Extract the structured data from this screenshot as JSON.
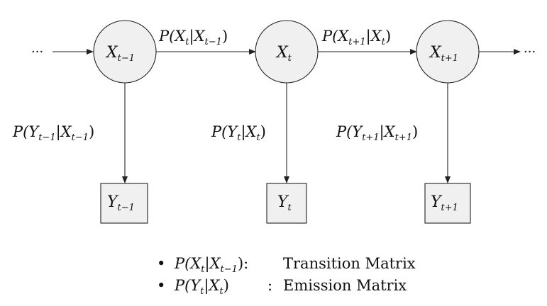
{
  "diagram": {
    "leading_ellipsis": "···",
    "trailing_ellipsis": "···",
    "hidden_nodes": [
      {
        "id": "x_prev",
        "var": "X",
        "sub": "t−1"
      },
      {
        "id": "x_curr",
        "var": "X",
        "sub": "t"
      },
      {
        "id": "x_next",
        "var": "X",
        "sub": "t+1"
      }
    ],
    "observed_nodes": [
      {
        "id": "y_prev",
        "var": "Y",
        "sub": "t−1"
      },
      {
        "id": "y_curr",
        "var": "Y",
        "sub": "t"
      },
      {
        "id": "y_next",
        "var": "Y",
        "sub": "t+1"
      }
    ],
    "transition_labels": [
      {
        "p": "P(",
        "a": "X",
        "a_sub": "t",
        "bar": "|",
        "b": "X",
        "b_sub": "t−1",
        "close": ")"
      },
      {
        "p": "P(",
        "a": "X",
        "a_sub": "t+1",
        "bar": "|",
        "b": "X",
        "b_sub": "t",
        "close": ")"
      }
    ],
    "emission_labels": [
      {
        "p": "P(",
        "a": "Y",
        "a_sub": "t−1",
        "bar": "|",
        "b": "X",
        "b_sub": "t−1",
        "close": ")"
      },
      {
        "p": "P(",
        "a": "Y",
        "a_sub": "t",
        "bar": "|",
        "b": "X",
        "b_sub": "t",
        "close": ")"
      },
      {
        "p": "P(",
        "a": "Y",
        "a_sub": "t+1",
        "bar": "|",
        "b": "X",
        "b_sub": "t+1",
        "close": ")"
      }
    ]
  },
  "legend": [
    {
      "bullet": "•",
      "expr": {
        "p": "P(",
        "a": "X",
        "a_sub": "t",
        "bar": "|",
        "b": "X",
        "b_sub": "t−1",
        "close": ")"
      },
      "sep": ":",
      "text": "Transition Matrix"
    },
    {
      "bullet": "•",
      "expr": {
        "p": "P(",
        "a": "Y",
        "a_sub": "t",
        "bar": "|",
        "b": "X",
        "b_sub": "t",
        "close": ")"
      },
      "sep": ":",
      "text": "Emission Matrix"
    }
  ]
}
